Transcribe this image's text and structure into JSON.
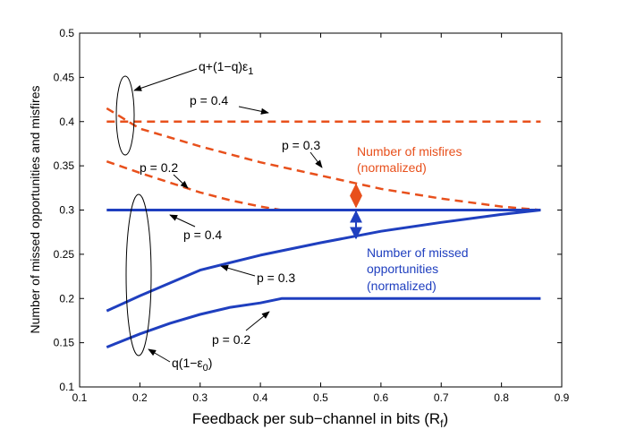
{
  "chart_data": {
    "type": "line",
    "title": "",
    "xlabel": "Feedback per sub−channel in bits (R",
    "xlabel_sub": "f",
    "xlabel_close": ")",
    "ylabel": "Number of missed opportunities and misfires",
    "xlim": [
      0.1,
      0.9
    ],
    "ylim": [
      0.1,
      0.5
    ],
    "xticks": [
      "0.1",
      "0.2",
      "0.3",
      "0.4",
      "0.5",
      "0.6",
      "0.7",
      "0.8",
      "0.9"
    ],
    "yticks": [
      "0.1",
      "0.15",
      "0.2",
      "0.25",
      "0.3",
      "0.35",
      "0.4",
      "0.45",
      "0.5"
    ],
    "grid": false,
    "colors": {
      "misfires": "#e8501c",
      "missed": "#1f3fbf"
    },
    "series": [
      {
        "name": "misfires p = 0.4",
        "group": "misfires",
        "p": 0.4,
        "x": [
          0.145,
          0.865
        ],
        "y": [
          0.4,
          0.4
        ]
      },
      {
        "name": "misfires p = 0.3",
        "group": "misfires",
        "p": 0.3,
        "x": [
          0.145,
          0.2,
          0.3,
          0.4,
          0.5,
          0.6,
          0.7,
          0.8,
          0.865
        ],
        "y": [
          0.415,
          0.392,
          0.372,
          0.354,
          0.339,
          0.324,
          0.313,
          0.304,
          0.3
        ]
      },
      {
        "name": "misfires p = 0.2",
        "group": "misfires",
        "p": 0.2,
        "x": [
          0.145,
          0.2,
          0.25,
          0.3,
          0.35,
          0.4,
          0.435,
          0.865
        ],
        "y": [
          0.355,
          0.342,
          0.331,
          0.32,
          0.311,
          0.304,
          0.3,
          0.3
        ]
      },
      {
        "name": "missed p = 0.4",
        "group": "missed",
        "p": 0.4,
        "x": [
          0.145,
          0.865
        ],
        "y": [
          0.3,
          0.3
        ]
      },
      {
        "name": "missed p = 0.3",
        "group": "missed",
        "p": 0.3,
        "x": [
          0.145,
          0.2,
          0.3,
          0.4,
          0.5,
          0.6,
          0.7,
          0.8,
          0.865
        ],
        "y": [
          0.186,
          0.203,
          0.232,
          0.249,
          0.263,
          0.276,
          0.286,
          0.295,
          0.3
        ]
      },
      {
        "name": "missed p = 0.2",
        "group": "missed",
        "p": 0.2,
        "x": [
          0.145,
          0.2,
          0.25,
          0.3,
          0.35,
          0.4,
          0.435,
          0.865
        ],
        "y": [
          0.145,
          0.16,
          0.172,
          0.182,
          0.19,
          0.195,
          0.2,
          0.2
        ]
      }
    ],
    "annotations": {
      "upper_bracket_label": "q+(1−q)ε",
      "upper_bracket_sub": "1",
      "lower_bracket_label": "q(1−ε",
      "lower_bracket_sub": "0",
      "lower_bracket_close": ")",
      "misfires_label_line1": "Number of misfires",
      "misfires_label_line2": "(normalized)",
      "missed_label_line1": "Number of missed",
      "missed_label_line2": "opportunities",
      "missed_label_line3": "(normalized)",
      "p_labels": [
        {
          "id": "mis-p04",
          "text": "p = 0.4"
        },
        {
          "id": "mis-p03",
          "text": "p = 0.3"
        },
        {
          "id": "mis-p02",
          "text": "p = 0.2"
        },
        {
          "id": "mo-p04",
          "text": "p = 0.4"
        },
        {
          "id": "mo-p03",
          "text": "p = 0.3"
        },
        {
          "id": "mo-p02",
          "text": "p = 0.2"
        }
      ]
    }
  }
}
